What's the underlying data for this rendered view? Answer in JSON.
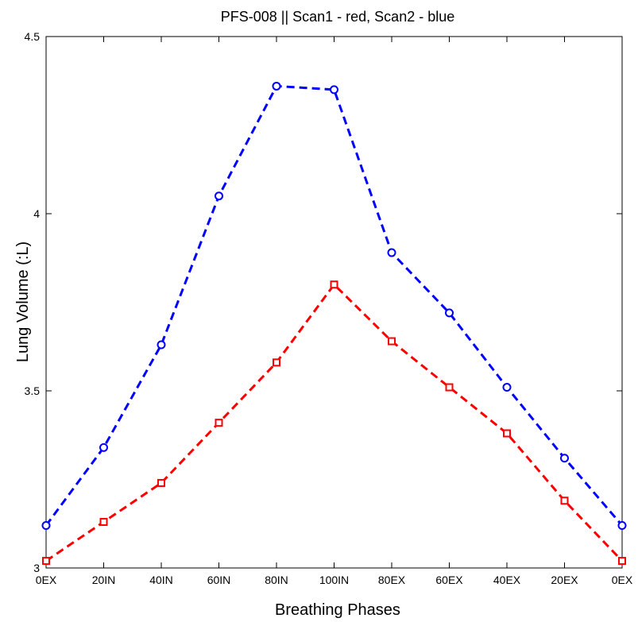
{
  "chart_data": {
    "type": "line",
    "title": "PFS-008 || Scan1 - red, Scan2 - blue",
    "xlabel": "Breathing Phases",
    "ylabel": "Lung Volume (:L)",
    "categories": [
      "0EX",
      "20IN",
      "40IN",
      "60IN",
      "80IN",
      "100IN",
      "80EX",
      "60EX",
      "40EX",
      "20EX",
      "0EX"
    ],
    "ylim": [
      3,
      4.5
    ],
    "yticks": [
      3,
      3.5,
      4,
      4.5
    ],
    "ytick_labels": [
      "3",
      "3.5",
      "4",
      "4.5"
    ],
    "grid": false,
    "series": [
      {
        "color": "#0000ff",
        "marker": "circle",
        "line_style": "dashed",
        "values": [
          3.12,
          3.34,
          3.63,
          4.05,
          4.36,
          4.35,
          3.89,
          3.72,
          3.51,
          3.31,
          3.12
        ]
      },
      {
        "color": "#ff0000",
        "marker": "square",
        "line_style": "dashed",
        "values": [
          3.02,
          3.13,
          3.24,
          3.41,
          3.58,
          3.8,
          3.64,
          3.51,
          3.38,
          3.19,
          3.02
        ]
      }
    ]
  }
}
